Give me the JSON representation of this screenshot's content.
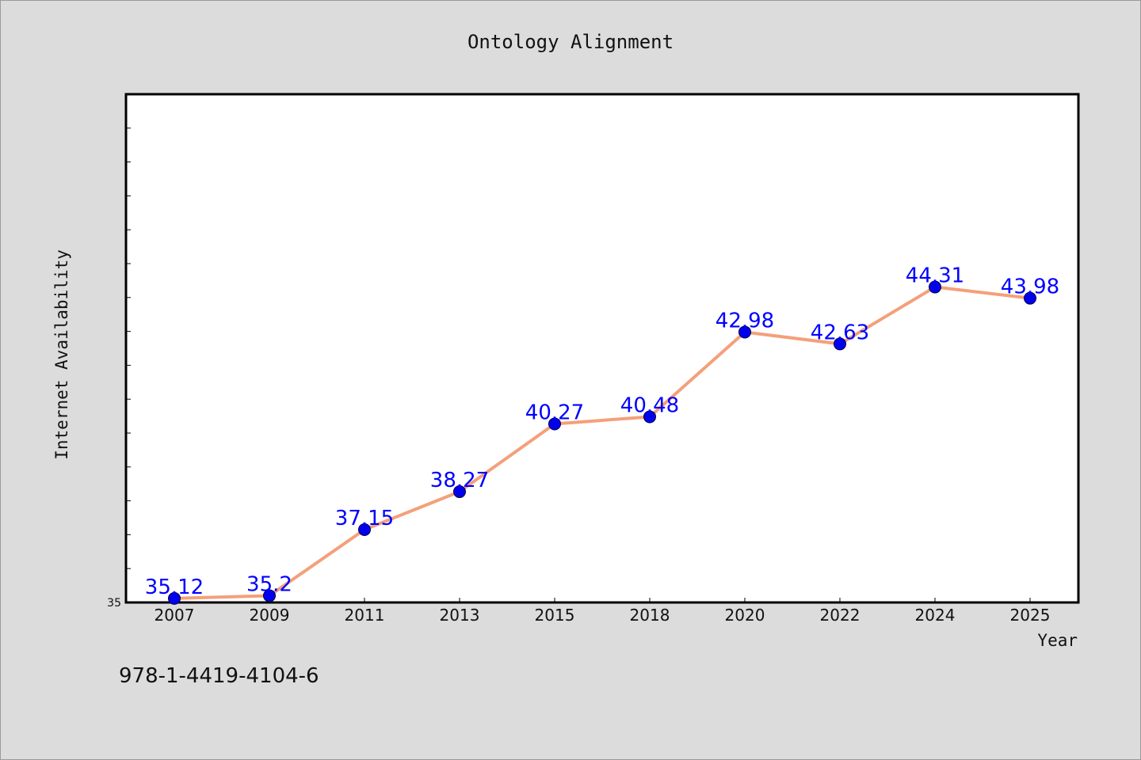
{
  "chart_data": {
    "type": "line",
    "title": "Ontology Alignment",
    "xlabel": "Year",
    "ylabel": "Internet Availability",
    "categories": [
      "2007",
      "2009",
      "2011",
      "2013",
      "2015",
      "2018",
      "2020",
      "2022",
      "2024",
      "2025"
    ],
    "series": [
      {
        "values": [
          35.12,
          35.2,
          37.15,
          38.27,
          40.27,
          40.48,
          42.98,
          42.63,
          44.31,
          43.98
        ],
        "data_labels": [
          "35.12",
          "35.2",
          "37.15",
          "38.27",
          "40.27",
          "40.48",
          "42.98",
          "42.63",
          "44.31",
          "43.98"
        ]
      }
    ],
    "ylim": [
      35,
      50
    ],
    "y_tick_labels": [
      "35"
    ],
    "grid": false,
    "legend": "none",
    "colors": {
      "line": "#f4a07a",
      "marker": "#0000ee",
      "data_label": "#0000ff",
      "background": "#dcdcdc",
      "plot_background": "#ffffff"
    }
  },
  "footer": {
    "isbn": "978-1-4419-4104-6"
  }
}
